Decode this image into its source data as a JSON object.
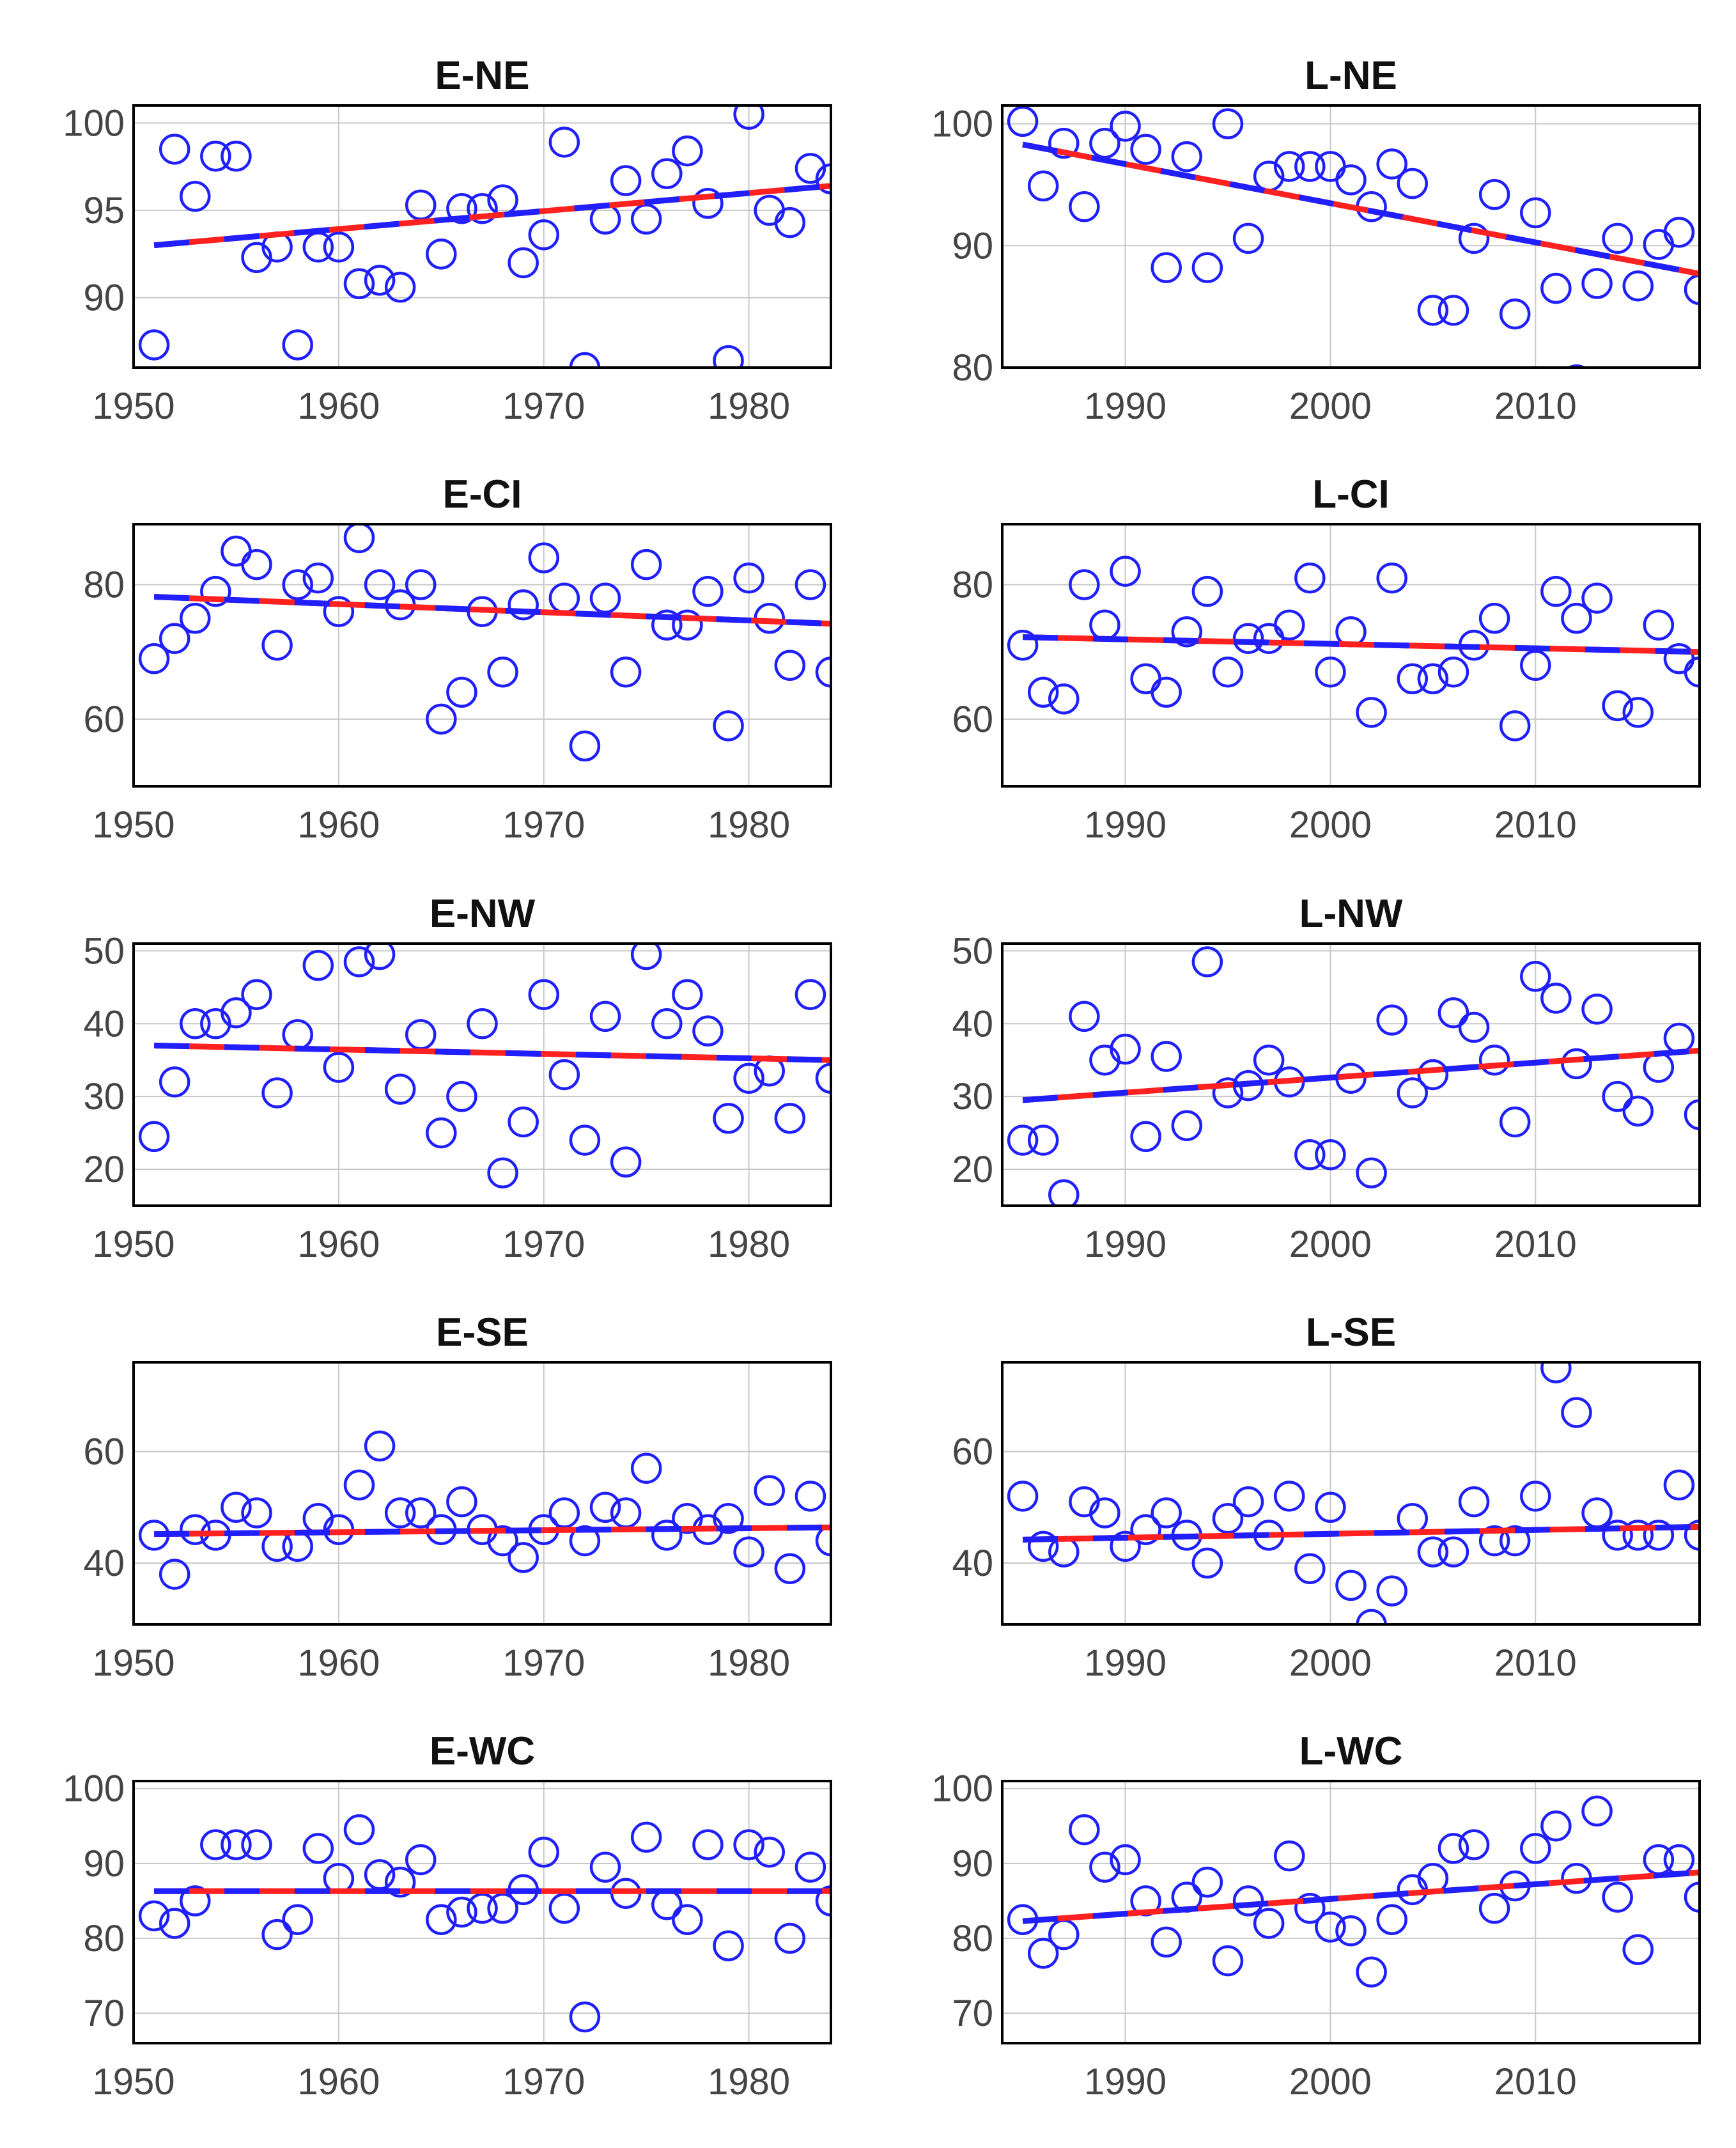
{
  "chart_data": [
    {
      "id": "E-NE",
      "type": "scatter",
      "title": "E-NE",
      "xlim": [
        1950,
        1984
      ],
      "ylim": [
        86,
        101
      ],
      "xticks": [
        1950,
        1960,
        1970,
        1980
      ],
      "yticks": [
        90,
        95,
        100
      ],
      "x": [
        1951,
        1952,
        1953,
        1954,
        1955,
        1956,
        1957,
        1958,
        1959,
        1960,
        1961,
        1962,
        1963,
        1964,
        1965,
        1966,
        1967,
        1968,
        1969,
        1970,
        1971,
        1972,
        1973,
        1974,
        1975,
        1976,
        1977,
        1978,
        1979,
        1980,
        1981,
        1982,
        1983,
        1984
      ],
      "y": [
        87.3,
        98.5,
        95.8,
        98.1,
        98.1,
        92.3,
        92.9,
        87.3,
        92.9,
        92.9,
        90.8,
        91,
        90.6,
        95.3,
        92.5,
        95.1,
        95.1,
        95.6,
        92,
        93.6,
        98.9,
        86,
        94.5,
        96.7,
        94.5,
        97.1,
        98.4,
        95.4,
        86.4,
        100.5,
        95,
        94.3,
        97.4,
        96.8
      ],
      "trend": {
        "x": [
          1951,
          1984
        ],
        "y": [
          93.0,
          96.4
        ]
      }
    },
    {
      "id": "L-NE",
      "type": "scatter",
      "title": "L-NE",
      "xlim": [
        1984,
        2018
      ],
      "ylim": [
        80,
        101.5
      ],
      "xticks": [
        1990,
        2000,
        2010
      ],
      "yticks": [
        80,
        90,
        100
      ],
      "x": [
        1985,
        1986,
        1987,
        1988,
        1989,
        1990,
        1991,
        1992,
        1993,
        1994,
        1995,
        1996,
        1997,
        1998,
        1999,
        2000,
        2001,
        2002,
        2003,
        2004,
        2005,
        2006,
        2007,
        2008,
        2009,
        2010,
        2011,
        2012,
        2013,
        2014,
        2015,
        2016,
        2017,
        2018
      ],
      "y": [
        100.2,
        94.9,
        98.4,
        93.2,
        98.4,
        99.8,
        97.9,
        88.2,
        97.3,
        88.2,
        100,
        90.6,
        95.7,
        96.5,
        96.5,
        96.5,
        95.4,
        93.2,
        96.7,
        95.1,
        84.7,
        84.7,
        90.6,
        94.2,
        84.4,
        92.7,
        86.5,
        79,
        86.9,
        90.6,
        86.7,
        90.1,
        91.1,
        86.4
      ],
      "trend": {
        "x": [
          1985,
          2018
        ],
        "y": [
          98.3,
          87.7
        ]
      }
    },
    {
      "id": "E-CI",
      "type": "scatter",
      "title": "E-CI",
      "xlim": [
        1950,
        1984
      ],
      "ylim": [
        50,
        89
      ],
      "xticks": [
        1950,
        1960,
        1970,
        1980
      ],
      "yticks": [
        60,
        80
      ],
      "x": [
        1951,
        1952,
        1953,
        1954,
        1955,
        1956,
        1957,
        1958,
        1959,
        1960,
        1961,
        1962,
        1963,
        1964,
        1965,
        1966,
        1967,
        1968,
        1969,
        1970,
        1971,
        1972,
        1973,
        1974,
        1975,
        1976,
        1977,
        1978,
        1979,
        1980,
        1981,
        1982,
        1983,
        1984
      ],
      "y": [
        69,
        72,
        75,
        79,
        85,
        83,
        71,
        80,
        81,
        76,
        87,
        80,
        77,
        80,
        60,
        64,
        76,
        67,
        77,
        84,
        78,
        56,
        78,
        67,
        83,
        74,
        74,
        79,
        59,
        81,
        75,
        68,
        80,
        67
      ],
      "trend": {
        "x": [
          1951,
          1984
        ],
        "y": [
          78.2,
          74.2
        ]
      }
    },
    {
      "id": "L-CI",
      "type": "scatter",
      "title": "L-CI",
      "xlim": [
        1984,
        2018
      ],
      "ylim": [
        50,
        89
      ],
      "xticks": [
        1990,
        2000,
        2010
      ],
      "yticks": [
        60,
        80
      ],
      "x": [
        1985,
        1986,
        1987,
        1988,
        1989,
        1990,
        1991,
        1992,
        1993,
        1994,
        1995,
        1996,
        1997,
        1998,
        1999,
        2000,
        2001,
        2002,
        2003,
        2004,
        2005,
        2006,
        2007,
        2008,
        2009,
        2010,
        2011,
        2012,
        2013,
        2014,
        2015,
        2016,
        2017,
        2018
      ],
      "y": [
        71,
        64,
        63,
        80,
        74,
        82,
        66,
        64,
        73,
        79,
        67,
        72,
        72,
        74,
        81,
        67,
        73,
        61,
        81,
        66,
        66,
        67,
        71,
        75,
        59,
        68,
        79,
        75,
        78,
        62,
        61,
        74,
        69,
        67
      ],
      "trend": {
        "x": [
          1985,
          2018
        ],
        "y": [
          72.2,
          70.0
        ]
      }
    },
    {
      "id": "E-NW",
      "type": "scatter",
      "title": "E-NW",
      "xlim": [
        1950,
        1984
      ],
      "ylim": [
        15,
        51
      ],
      "xticks": [
        1950,
        1960,
        1970,
        1980
      ],
      "yticks": [
        20,
        30,
        40,
        50
      ],
      "x": [
        1951,
        1952,
        1953,
        1954,
        1955,
        1956,
        1957,
        1958,
        1959,
        1960,
        1961,
        1962,
        1963,
        1964,
        1965,
        1966,
        1967,
        1968,
        1969,
        1970,
        1971,
        1972,
        1973,
        1974,
        1975,
        1976,
        1977,
        1978,
        1979,
        1980,
        1981,
        1982,
        1983,
        1984
      ],
      "y": [
        24.5,
        32,
        40,
        40,
        41.5,
        44,
        30.5,
        38.5,
        48,
        34,
        48.5,
        49.5,
        31,
        38.5,
        25,
        30,
        40,
        19.5,
        26.5,
        44,
        33,
        24,
        41,
        21,
        49.5,
        40,
        44,
        39,
        27,
        32.5,
        33.5,
        27,
        44,
        32.5
      ],
      "trend": {
        "x": [
          1951,
          1984
        ],
        "y": [
          37.0,
          35.0
        ]
      }
    },
    {
      "id": "L-NW",
      "type": "scatter",
      "title": "L-NW",
      "xlim": [
        1984,
        2018
      ],
      "ylim": [
        15,
        51
      ],
      "xticks": [
        1990,
        2000,
        2010
      ],
      "yticks": [
        20,
        30,
        40,
        50
      ],
      "x": [
        1985,
        1986,
        1987,
        1988,
        1989,
        1990,
        1991,
        1992,
        1993,
        1994,
        1995,
        1996,
        1997,
        1998,
        1999,
        2000,
        2001,
        2002,
        2003,
        2004,
        2005,
        2006,
        2007,
        2008,
        2009,
        2010,
        2011,
        2012,
        2013,
        2014,
        2015,
        2016,
        2017,
        2018
      ],
      "y": [
        24,
        24,
        16.5,
        41,
        35,
        36.5,
        24.5,
        35.5,
        26,
        48.5,
        30.5,
        31.5,
        35,
        32,
        22,
        22,
        32.5,
        19.5,
        40.5,
        30.5,
        33,
        41.5,
        39.5,
        35,
        26.5,
        46.5,
        43.5,
        34.5,
        42,
        30,
        28,
        34,
        38,
        27.5
      ],
      "trend": {
        "x": [
          1985,
          2018
        ],
        "y": [
          29.5,
          36.3
        ]
      }
    },
    {
      "id": "E-SE",
      "type": "scatter",
      "title": "E-SE",
      "xlim": [
        1950,
        1984
      ],
      "ylim": [
        29,
        76
      ],
      "xticks": [
        1950,
        1960,
        1970,
        1980
      ],
      "yticks": [
        40,
        60
      ],
      "x": [
        1951,
        1952,
        1953,
        1954,
        1955,
        1956,
        1957,
        1958,
        1959,
        1960,
        1961,
        1962,
        1963,
        1964,
        1965,
        1966,
        1967,
        1968,
        1969,
        1970,
        1971,
        1972,
        1973,
        1974,
        1975,
        1976,
        1977,
        1978,
        1979,
        1980,
        1981,
        1982,
        1983,
        1984
      ],
      "y": [
        45,
        38,
        46,
        45,
        50,
        49,
        43,
        43,
        48,
        46,
        54,
        61,
        49,
        49,
        46,
        51,
        46,
        44,
        41,
        46,
        49,
        44,
        50,
        49,
        57,
        45,
        48,
        46,
        48,
        42,
        53,
        39,
        52,
        44
      ],
      "trend": {
        "x": [
          1951,
          1984
        ],
        "y": [
          45.2,
          46.4
        ]
      }
    },
    {
      "id": "L-SE",
      "type": "scatter",
      "title": "L-SE",
      "xlim": [
        1984,
        2018
      ],
      "ylim": [
        29,
        76
      ],
      "xticks": [
        1990,
        2000,
        2010
      ],
      "yticks": [
        40,
        60
      ],
      "x": [
        1985,
        1986,
        1987,
        1988,
        1989,
        1990,
        1991,
        1992,
        1993,
        1994,
        1995,
        1996,
        1997,
        1998,
        1999,
        2000,
        2001,
        2002,
        2003,
        2004,
        2005,
        2006,
        2007,
        2008,
        2009,
        2010,
        2011,
        2012,
        2013,
        2014,
        2015,
        2016,
        2017,
        2018
      ],
      "y": [
        52,
        43,
        42,
        51,
        49,
        43,
        46,
        49,
        45,
        40,
        48,
        51,
        45,
        52,
        39,
        50,
        36,
        29,
        35,
        48,
        42,
        42,
        51,
        44,
        44,
        52,
        75,
        67,
        49,
        45,
        45,
        45,
        54,
        45
      ],
      "trend": {
        "x": [
          1985,
          2018
        ],
        "y": [
          44.2,
          46.5
        ]
      }
    },
    {
      "id": "E-WC",
      "type": "scatter",
      "title": "E-WC",
      "xlim": [
        1950,
        1984
      ],
      "ylim": [
        66,
        101
      ],
      "xticks": [
        1950,
        1960,
        1970,
        1980
      ],
      "yticks": [
        70,
        80,
        90,
        100
      ],
      "x": [
        1951,
        1952,
        1953,
        1954,
        1955,
        1956,
        1957,
        1958,
        1959,
        1960,
        1961,
        1962,
        1963,
        1964,
        1965,
        1966,
        1967,
        1968,
        1969,
        1970,
        1971,
        1972,
        1973,
        1974,
        1975,
        1976,
        1977,
        1978,
        1979,
        1980,
        1981,
        1982,
        1983,
        1984
      ],
      "y": [
        83,
        82,
        85,
        92.5,
        92.5,
        92.5,
        80.5,
        82.5,
        92,
        88,
        94.5,
        88.5,
        87.5,
        90.5,
        82.5,
        83.5,
        84,
        84,
        86.5,
        91.5,
        84,
        69.5,
        89.5,
        86,
        93.5,
        84.5,
        82.5,
        92.5,
        79,
        92.5,
        91.5,
        80,
        89.5,
        85
      ],
      "trend": {
        "x": [
          1951,
          1984
        ],
        "y": [
          86.3,
          86.3
        ]
      }
    },
    {
      "id": "L-WC",
      "type": "scatter",
      "title": "L-WC",
      "xlim": [
        1984,
        2018
      ],
      "ylim": [
        66,
        101
      ],
      "xticks": [
        1990,
        2000,
        2010
      ],
      "yticks": [
        70,
        80,
        90,
        100
      ],
      "x": [
        1985,
        1986,
        1987,
        1988,
        1989,
        1990,
        1991,
        1992,
        1993,
        1994,
        1995,
        1996,
        1997,
        1998,
        1999,
        2000,
        2001,
        2002,
        2003,
        2004,
        2005,
        2006,
        2007,
        2008,
        2009,
        2010,
        2011,
        2012,
        2013,
        2014,
        2015,
        2016,
        2017,
        2018
      ],
      "y": [
        82.5,
        78,
        80.5,
        94.5,
        89.5,
        90.5,
        85,
        79.5,
        85.5,
        87.5,
        77,
        85,
        82,
        91,
        84,
        81.5,
        81,
        75.5,
        82.5,
        86.5,
        88,
        92,
        92.5,
        84,
        87,
        92,
        95,
        88,
        97,
        85.5,
        78.5,
        90.5,
        90.5,
        85.5
      ],
      "trend": {
        "x": [
          1985,
          2018
        ],
        "y": [
          82.3,
          88.8
        ]
      }
    }
  ]
}
